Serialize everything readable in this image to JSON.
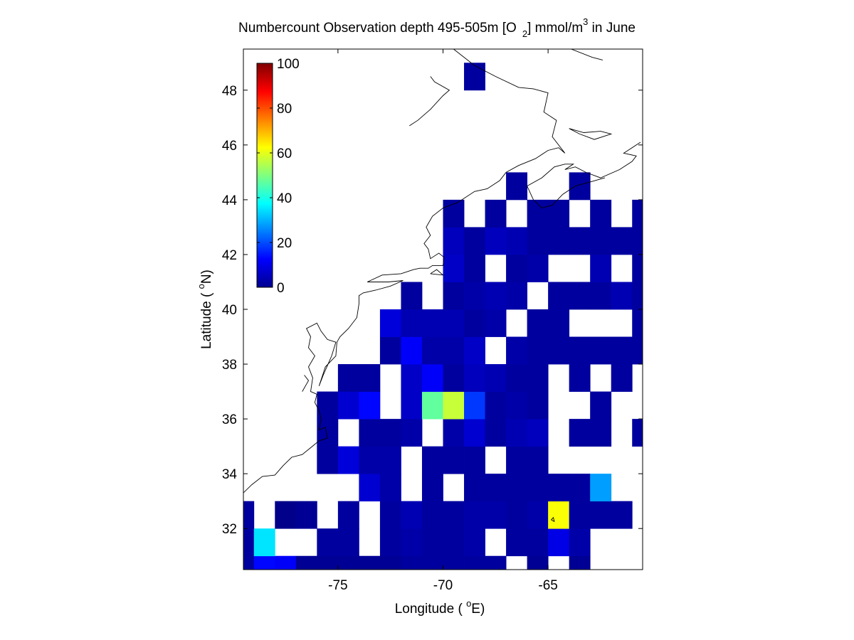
{
  "chart_data": {
    "type": "heatmap",
    "title": {
      "main": "Numbercount Observation depth 495-505m [O",
      "sub": "2",
      "mid": "] mmol/m",
      "sup": "3",
      "tail": " in June"
    },
    "xlabel": {
      "pre": "Longitude ( ",
      "sup": "o",
      "post": "E)"
    },
    "ylabel": {
      "pre": "Latitude ( ",
      "sup": "o",
      "post": "N)"
    },
    "xlim": [
      -79.5,
      -60.5
    ],
    "ylim": [
      30.5,
      49.5
    ],
    "xticks": [
      -75,
      -70,
      -65
    ],
    "xtick_labels": [
      "-75",
      "-70",
      "-65"
    ],
    "yticks": [
      32,
      34,
      36,
      38,
      40,
      42,
      44,
      46,
      48
    ],
    "ytick_labels": [
      "32",
      "34",
      "36",
      "38",
      "40",
      "42",
      "44",
      "46",
      "48"
    ],
    "colorbar": {
      "colormap": "jet",
      "range": [
        0,
        100
      ],
      "ticks": [
        0,
        20,
        40,
        60,
        80,
        100
      ],
      "tick_labels": [
        "0",
        "20",
        "40",
        "60",
        "80",
        "100"
      ],
      "placement": "inside-top-left"
    },
    "grid": false,
    "lon_centers": [
      -79.5,
      -78.5,
      -77.5,
      -76.5,
      -75.5,
      -74.5,
      -73.5,
      -72.5,
      -71.5,
      -70.5,
      -69.5,
      -68.5,
      -67.5,
      -66.5,
      -65.5,
      -64.5,
      -63.5,
      -62.5,
      -61.5,
      -60.5
    ],
    "lat_centers": [
      30.5,
      31.5,
      32.5,
      33.5,
      34.5,
      35.5,
      36.5,
      37.5,
      38.5,
      39.5,
      40.5,
      41.5,
      42.5,
      43.5,
      44.5,
      45.5,
      46.5,
      47.5,
      48.5,
      49.5
    ],
    "values": [
      [
        3,
        13,
        12,
        2,
        2,
        2,
        2,
        2,
        3,
        3,
        3,
        3,
        3,
        null,
        2,
        null,
        2,
        null,
        null,
        null
      ],
      [
        3,
        35,
        null,
        null,
        3,
        3,
        null,
        3,
        4,
        3,
        3,
        4,
        null,
        3,
        3,
        10,
        4,
        null,
        null,
        null
      ],
      [
        3,
        null,
        1,
        2,
        null,
        3,
        null,
        3,
        5,
        3,
        3,
        4,
        4,
        3,
        4,
        62,
        3,
        3,
        3,
        null
      ],
      [
        null,
        null,
        null,
        null,
        null,
        null,
        8,
        4,
        null,
        3,
        null,
        3,
        3,
        3,
        3,
        3,
        3,
        28,
        null,
        null
      ],
      [
        null,
        null,
        null,
        null,
        3,
        9,
        4,
        4,
        null,
        3,
        3,
        3,
        null,
        3,
        3,
        null,
        null,
        null,
        null,
        null
      ],
      [
        null,
        null,
        null,
        null,
        3,
        null,
        3,
        3,
        4,
        null,
        4,
        8,
        3,
        5,
        6,
        null,
        3,
        3,
        null,
        3
      ],
      [
        null,
        null,
        null,
        null,
        3,
        8,
        13,
        null,
        7,
        47,
        57,
        18,
        3,
        4,
        3,
        null,
        null,
        3,
        null,
        null
      ],
      [
        null,
        null,
        null,
        null,
        null,
        3,
        3,
        null,
        7,
        12,
        3,
        6,
        5,
        3,
        3,
        null,
        3,
        null,
        3,
        null
      ],
      [
        null,
        null,
        null,
        null,
        null,
        null,
        null,
        3,
        12,
        4,
        4,
        7,
        null,
        4,
        3,
        3,
        3,
        3,
        3,
        3
      ],
      [
        null,
        null,
        null,
        null,
        null,
        null,
        null,
        9,
        5,
        5,
        5,
        3,
        4,
        null,
        3,
        3,
        null,
        null,
        null,
        3
      ],
      [
        null,
        null,
        null,
        null,
        null,
        null,
        null,
        null,
        3,
        null,
        3,
        4,
        5,
        4,
        null,
        3,
        3,
        3,
        5,
        3
      ],
      [
        null,
        null,
        null,
        null,
        null,
        null,
        null,
        null,
        null,
        null,
        7,
        3,
        null,
        3,
        4,
        null,
        null,
        5,
        null,
        3
      ],
      [
        null,
        null,
        null,
        null,
        null,
        null,
        null,
        null,
        null,
        null,
        6,
        3,
        6,
        5,
        3,
        3,
        3,
        3,
        3,
        3
      ],
      [
        null,
        null,
        null,
        null,
        null,
        null,
        null,
        null,
        null,
        null,
        3,
        null,
        3,
        null,
        3,
        3,
        null,
        3,
        null,
        3
      ],
      [
        null,
        null,
        null,
        null,
        null,
        null,
        null,
        null,
        null,
        null,
        null,
        null,
        null,
        3,
        null,
        null,
        3,
        null,
        null,
        null
      ],
      [
        null,
        null,
        null,
        null,
        null,
        null,
        null,
        null,
        null,
        null,
        null,
        null,
        null,
        null,
        null,
        null,
        null,
        null,
        null,
        null
      ],
      [
        null,
        null,
        null,
        null,
        null,
        null,
        null,
        null,
        null,
        null,
        null,
        null,
        null,
        null,
        null,
        null,
        null,
        null,
        null,
        null
      ],
      [
        null,
        null,
        null,
        null,
        null,
        null,
        null,
        null,
        null,
        null,
        null,
        null,
        null,
        null,
        null,
        null,
        null,
        null,
        null,
        null
      ],
      [
        null,
        null,
        null,
        null,
        null,
        null,
        null,
        null,
        null,
        null,
        null,
        3,
        null,
        null,
        null,
        null,
        null,
        null,
        null,
        null
      ],
      [
        null,
        null,
        null,
        null,
        null,
        null,
        null,
        null,
        null,
        null,
        null,
        null,
        null,
        null,
        null,
        null,
        null,
        null,
        null,
        null
      ]
    ],
    "coastline": [
      [
        [
          -79.5,
          33.3
        ],
        [
          -79.1,
          33.6
        ],
        [
          -78.6,
          33.9
        ],
        [
          -78.0,
          33.95
        ],
        [
          -77.6,
          34.3
        ],
        [
          -77.2,
          34.6
        ],
        [
          -76.7,
          34.7
        ],
        [
          -76.3,
          34.95
        ],
        [
          -75.9,
          35.2
        ],
        [
          -75.5,
          35.3
        ],
        [
          -75.6,
          35.7
        ],
        [
          -75.9,
          35.6
        ],
        [
          -75.8,
          36.0
        ],
        [
          -75.9,
          36.3
        ],
        [
          -76.1,
          36.6
        ],
        [
          -76.0,
          36.9
        ],
        [
          -76.3,
          37.0
        ],
        [
          -76.2,
          37.5
        ],
        [
          -76.4,
          37.9
        ],
        [
          -76.1,
          38.3
        ],
        [
          -76.4,
          38.6
        ],
        [
          -76.3,
          39.0
        ],
        [
          -76.5,
          39.3
        ],
        [
          -76.0,
          39.5
        ],
        [
          -75.8,
          39.2
        ],
        [
          -75.5,
          38.9
        ],
        [
          -75.1,
          38.8
        ],
        [
          -75.3,
          38.3
        ],
        [
          -75.7,
          37.6
        ],
        [
          -75.9,
          37.2
        ],
        [
          -75.6,
          37.9
        ],
        [
          -75.1,
          38.3
        ],
        [
          -75.05,
          38.8
        ],
        [
          -74.9,
          39.0
        ],
        [
          -74.5,
          39.3
        ],
        [
          -74.1,
          39.7
        ],
        [
          -74.0,
          40.2
        ],
        [
          -74.0,
          40.5
        ],
        [
          -73.8,
          40.6
        ],
        [
          -73.2,
          40.7
        ],
        [
          -72.5,
          40.85
        ],
        [
          -71.9,
          41.05
        ],
        [
          -72.6,
          41.0
        ],
        [
          -73.6,
          41.0
        ],
        [
          -72.9,
          41.25
        ],
        [
          -72.0,
          41.3
        ],
        [
          -71.4,
          41.45
        ],
        [
          -71.1,
          41.5
        ],
        [
          -70.7,
          41.5
        ],
        [
          -70.5,
          41.6
        ],
        [
          -70.0,
          41.6
        ],
        [
          -69.95,
          41.9
        ],
        [
          -70.2,
          42.05
        ],
        [
          -70.6,
          41.85
        ],
        [
          -70.7,
          42.2
        ],
        [
          -70.9,
          42.4
        ],
        [
          -70.6,
          42.7
        ],
        [
          -70.8,
          43.0
        ],
        [
          -70.5,
          43.4
        ],
        [
          -70.0,
          43.7
        ],
        [
          -69.3,
          43.9
        ],
        [
          -68.5,
          44.3
        ],
        [
          -67.9,
          44.4
        ],
        [
          -67.3,
          44.7
        ],
        [
          -67.0,
          45.0
        ],
        [
          -66.4,
          45.25
        ],
        [
          -65.6,
          45.5
        ],
        [
          -65.0,
          45.8
        ],
        [
          -64.5,
          45.9
        ],
        [
          -64.2,
          45.7
        ],
        [
          -64.8,
          46.3
        ],
        [
          -64.6,
          46.9
        ],
        [
          -65.2,
          47.2
        ],
        [
          -65.0,
          47.9
        ],
        [
          -65.7,
          48.05
        ],
        [
          -66.4,
          48.1
        ],
        [
          -67.5,
          48.5
        ],
        [
          -68.5,
          48.9
        ],
        [
          -69.5,
          49.5
        ]
      ],
      [
        [
          -66.0,
          44.5
        ],
        [
          -65.3,
          44.8
        ],
        [
          -64.7,
          45.2
        ],
        [
          -64.2,
          45.3
        ],
        [
          -63.8,
          45.3
        ],
        [
          -64.2,
          45.1
        ],
        [
          -63.7,
          45.2
        ],
        [
          -63.2,
          45.0
        ],
        [
          -62.5,
          44.8
        ],
        [
          -61.6,
          45.1
        ],
        [
          -61.0,
          45.4
        ],
        [
          -60.8,
          45.6
        ],
        [
          -61.4,
          45.7
        ],
        [
          -60.6,
          46.1
        ]
      ],
      [
        [
          -66.0,
          44.5
        ],
        [
          -65.7,
          44.0
        ],
        [
          -65.3,
          43.7
        ],
        [
          -64.8,
          43.8
        ],
        [
          -64.3,
          44.2
        ],
        [
          -63.7,
          44.5
        ],
        [
          -63.0,
          44.65
        ],
        [
          -62.3,
          44.8
        ]
      ],
      [
        [
          -64.0,
          46.6
        ],
        [
          -63.5,
          46.4
        ],
        [
          -62.8,
          46.2
        ],
        [
          -62.0,
          46.4
        ],
        [
          -62.5,
          46.5
        ],
        [
          -63.3,
          46.45
        ],
        [
          -64.0,
          46.6
        ]
      ],
      [
        [
          -70.6,
          48.5
        ],
        [
          -70.4,
          48.3
        ],
        [
          -69.7,
          48.0
        ],
        [
          -70.0,
          47.8
        ],
        [
          -70.6,
          47.3
        ],
        [
          -71.2,
          46.9
        ],
        [
          -71.6,
          46.7
        ]
      ],
      [
        [
          -62.4,
          49.1
        ],
        [
          -62.9,
          49.2
        ],
        [
          -63.9,
          49.5
        ]
      ],
      [
        [
          -70.6,
          41.3
        ],
        [
          -70.0,
          41.25
        ],
        [
          -70.3,
          41.45
        ],
        [
          -70.6,
          41.3
        ]
      ],
      [
        [
          -76.7,
          37.0
        ],
        [
          -76.4,
          37.4
        ],
        [
          -76.6,
          37.6
        ]
      ],
      [
        [
          -64.7,
          32.25
        ],
        [
          -64.85,
          32.32
        ],
        [
          -64.75,
          32.4
        ],
        [
          -64.7,
          32.25
        ]
      ]
    ]
  }
}
